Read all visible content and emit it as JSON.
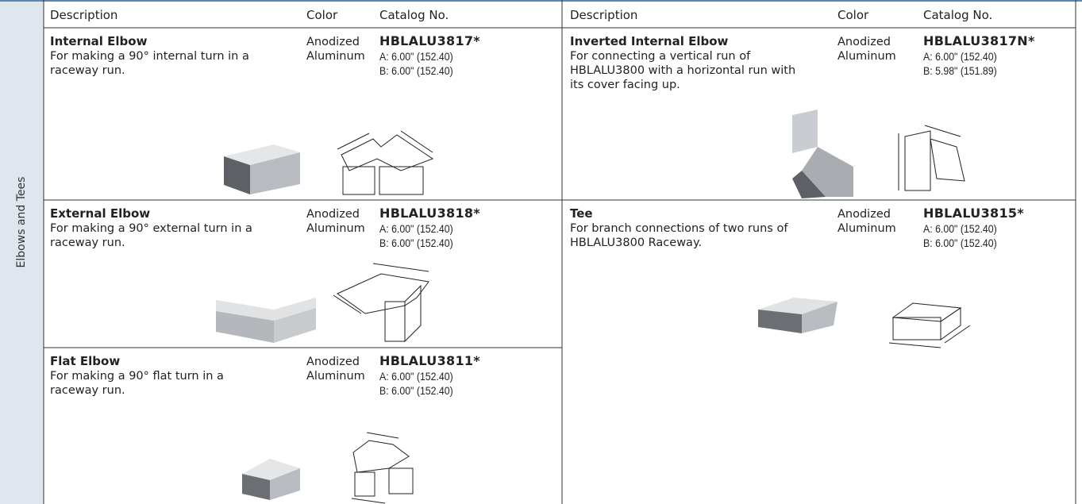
{
  "sidebar": "Elbows and Tees",
  "tables": [
    {
      "headers": [
        "Description",
        "Color",
        "Catalog No."
      ],
      "rows": [
        {
          "name": "Internal Elbow",
          "description": "For making a 90° internal turn in a raceway run.",
          "color": "Anodized Aluminum",
          "catalog": "HBLALU3817*",
          "dims": [
            "A: 6.00\" (152.40)",
            "B: 6.00\" (152.40)"
          ]
        },
        {
          "name": "External Elbow",
          "description": "For making a 90° external turn in a raceway run.",
          "color": "Anodized Aluminum",
          "catalog": "HBLALU3818*",
          "dims": [
            "A: 6.00\" (152.40)",
            "B: 6.00\" (152.40)"
          ]
        },
        {
          "name": "Flat Elbow",
          "description": "For making a 90° flat turn in a raceway run.",
          "color": "Anodized Aluminum",
          "catalog": "HBLALU3811*",
          "dims": [
            "A: 6.00\" (152.40)",
            "B: 6.00\" (152.40)"
          ]
        }
      ]
    },
    {
      "headers": [
        "Description",
        "Color",
        "Catalog No."
      ],
      "rows": [
        {
          "name": "Inverted Internal Elbow",
          "description": "For connecting a vertical run of HBLALU3800 with a horizontal run with its cover facing up.",
          "color": "Anodized Aluminum",
          "catalog": "HBLALU3817N*",
          "dims": [
            "A: 6.00\" (152.40)",
            "B: 5.98\" (151.89)"
          ]
        },
        {
          "name": "Tee",
          "description": "For branch connections of two runs of HBLALU3800 Raceway.",
          "color": "Anodized Aluminum",
          "catalog": "HBLALU3815*",
          "dims": [
            "A: 6.00\" (152.40)",
            "B: 6.00\" (152.40)"
          ]
        }
      ]
    }
  ]
}
